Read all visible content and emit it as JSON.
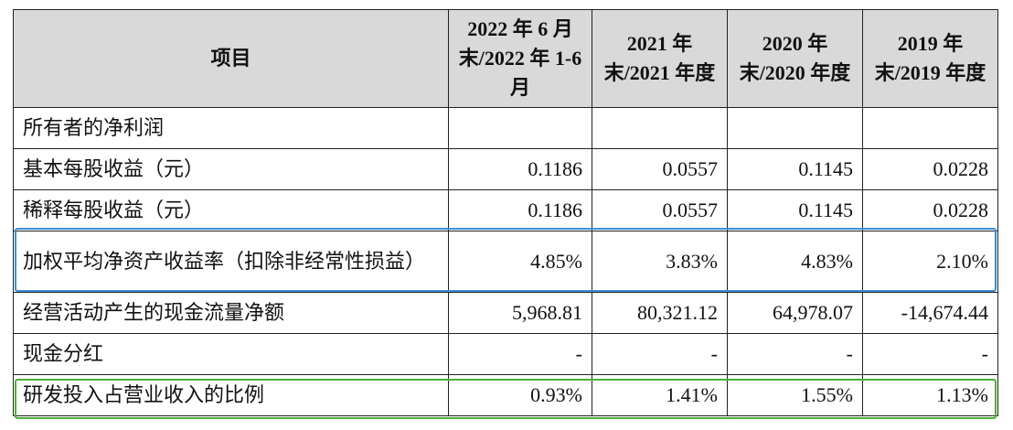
{
  "table": {
    "header": [
      "项目",
      "2022 年 6 月末/2022 年 1-6 月",
      "2021 年末/2021 年度",
      "2020 年末/2020 年度",
      "2019 年末/2019 年度"
    ],
    "rows": [
      [
        "所有者的净利润"
      ],
      [
        "基本每股收益（元）",
        "0.1186",
        "0.0557",
        "0.1145",
        "0.0228"
      ],
      [
        "稀释每股收益（元）",
        "0.1186",
        "0.0557",
        "0.1145",
        "0.0228"
      ],
      [
        "加权平均净资产收益率（扣除非经常性损益）",
        "4.85%",
        "3.83%",
        "4.83%",
        "2.10%"
      ],
      [
        "经营活动产生的现金流量净额",
        "5,968.81",
        "80,321.12",
        "64,978.07",
        "-14,674.44"
      ],
      [
        "现金分红",
        "-",
        "-",
        "-",
        "-"
      ],
      [
        "研发投入占营业收入的比例",
        "0.93%",
        "1.41%",
        "1.55%",
        "1.13%"
      ]
    ]
  }
}
